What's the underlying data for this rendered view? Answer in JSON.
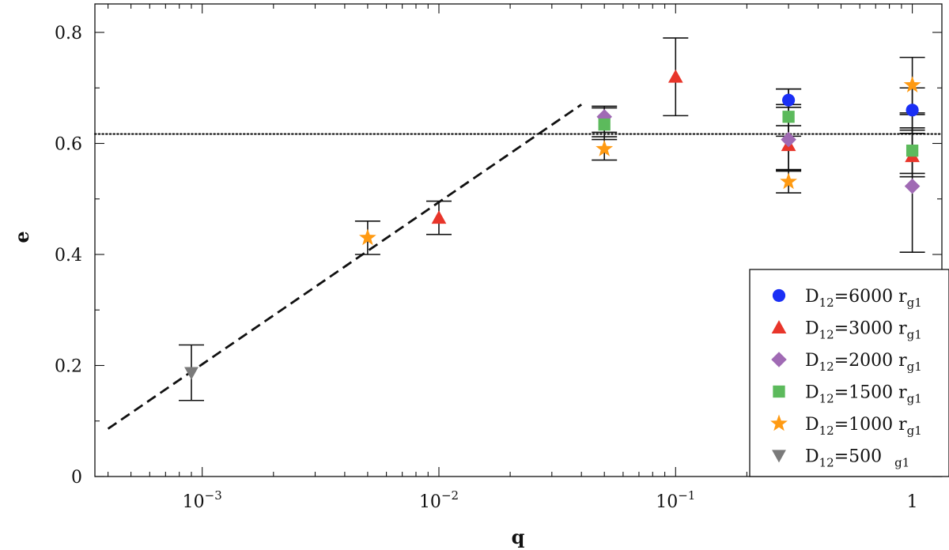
{
  "chart_data": {
    "type": "scatter",
    "xlabel": "q",
    "ylabel": "e",
    "xscale": "log",
    "xlim": [
      0.0004,
      1.5
    ],
    "ylim": [
      0,
      0.85
    ],
    "grid": false,
    "legend_position": "bottom-right",
    "x_ticks": [
      {
        "value": 0.001,
        "base": "10",
        "exp": "−3"
      },
      {
        "value": 0.01,
        "base": "10",
        "exp": "−2"
      },
      {
        "value": 0.1,
        "base": "10",
        "exp": "−1"
      },
      {
        "value": 1,
        "base": "1",
        "exp": ""
      }
    ],
    "y_ticks": [
      {
        "value": 0,
        "label": "0"
      },
      {
        "value": 0.2,
        "label": "0.2"
      },
      {
        "value": 0.4,
        "label": "0.4"
      },
      {
        "value": 0.6,
        "label": "0.6"
      },
      {
        "value": 0.8,
        "label": "0.8"
      }
    ],
    "series": [
      {
        "name": "D12=6000 rg1",
        "legend_main": "D",
        "legend_sub": "12",
        "legend_mid": "=6000 r",
        "legend_sub2": "g1",
        "marker": "circle",
        "color": "#1a2ff5",
        "points": [
          {
            "x": 0.3,
            "y": 0.678,
            "ylo": 0.67,
            "yhi": 0.698
          },
          {
            "x": 1,
            "y": 0.66,
            "ylo": 0.618,
            "yhi": 0.7
          }
        ]
      },
      {
        "name": "D12=3000 rg1",
        "legend_main": "D",
        "legend_sub": "12",
        "legend_mid": "=3000 r",
        "legend_sub2": "g1",
        "marker": "triangle-up",
        "color": "#e8352a",
        "points": [
          {
            "x": 0.01,
            "y": 0.466,
            "ylo": 0.436,
            "yhi": 0.496
          },
          {
            "x": 0.1,
            "y": 0.72,
            "ylo": 0.65,
            "yhi": 0.79
          },
          {
            "x": 0.3,
            "y": 0.597,
            "ylo": 0.552,
            "yhi": 0.632
          },
          {
            "x": 1,
            "y": 0.577,
            "ylo": 0.54,
            "yhi": 0.624
          }
        ]
      },
      {
        "name": "D12=2000 rg1",
        "legend_main": "D",
        "legend_sub": "12",
        "legend_mid": "=2000 r",
        "legend_sub2": "g1",
        "marker": "diamond",
        "color": "#a06ab4",
        "points": [
          {
            "x": 0.05,
            "y": 0.648,
            "ylo": 0.62,
            "yhi": 0.667
          },
          {
            "x": 0.3,
            "y": 0.607,
            "ylo": 0.55,
            "yhi": 0.665
          },
          {
            "x": 1,
            "y": 0.523,
            "ylo": 0.404,
            "yhi": 0.652
          }
        ]
      },
      {
        "name": "D12=1500 rg1",
        "legend_main": "D",
        "legend_sub": "12",
        "legend_mid": "=1500 r",
        "legend_sub2": "g1",
        "marker": "square",
        "color": "#5cba5c",
        "points": [
          {
            "x": 0.05,
            "y": 0.634,
            "ylo": 0.607,
            "yhi": 0.664
          },
          {
            "x": 0.3,
            "y": 0.648,
            "ylo": 0.613,
            "yhi": 0.698
          },
          {
            "x": 1,
            "y": 0.587,
            "ylo": 0.546,
            "yhi": 0.628
          }
        ]
      },
      {
        "name": "D12=1000 rg1",
        "legend_main": "D",
        "legend_sub": "12",
        "legend_mid": "=1000 r",
        "legend_sub2": "g1",
        "marker": "star",
        "color": "#ff9a12",
        "points": [
          {
            "x": 0.005,
            "y": 0.43,
            "ylo": 0.4,
            "yhi": 0.46
          },
          {
            "x": 0.05,
            "y": 0.59,
            "ylo": 0.57,
            "yhi": 0.612
          },
          {
            "x": 0.3,
            "y": 0.531,
            "ylo": 0.511,
            "yhi": 0.553
          },
          {
            "x": 1,
            "y": 0.705,
            "ylo": 0.655,
            "yhi": 0.755
          }
        ]
      },
      {
        "name": "D12=500 rg1",
        "legend_main": "D",
        "legend_sub": "12",
        "legend_mid": "=500",
        "legend_sub2": "g1",
        "legend_gap": true,
        "marker": "triangle-down",
        "color": "#7a7a7a",
        "points": [
          {
            "x": 0.0009,
            "y": 0.187,
            "ylo": 0.137,
            "yhi": 0.237
          }
        ]
      }
    ],
    "reference_lines": [
      {
        "style": "dotted",
        "y": 0.617
      },
      {
        "style": "dashed",
        "x": [
          0.0004,
          0.04
        ],
        "y": [
          0.086,
          0.67
        ]
      }
    ]
  }
}
